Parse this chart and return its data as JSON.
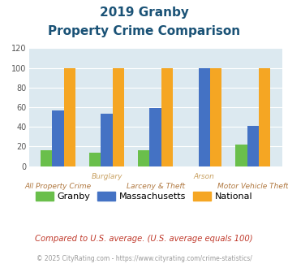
{
  "title_line1": "2019 Granby",
  "title_line2": "Property Crime Comparison",
  "categories": [
    "All Property Crime",
    "Burglary",
    "Larceny & Theft",
    "Arson",
    "Motor Vehicle Theft"
  ],
  "cat_row1": [
    "",
    "Burglary",
    "",
    "Arson",
    ""
  ],
  "cat_row2": [
    "All Property Crime",
    "",
    "Larceny & Theft",
    "",
    "Motor Vehicle Theft"
  ],
  "granby": [
    16,
    14,
    16,
    0,
    22
  ],
  "massachusetts": [
    57,
    53,
    59,
    100,
    41
  ],
  "national": [
    100,
    100,
    100,
    100,
    100
  ],
  "color_granby": "#6abf4b",
  "color_mass": "#4472c4",
  "color_national": "#f5a623",
  "ylim": [
    0,
    120
  ],
  "yticks": [
    0,
    20,
    40,
    60,
    80,
    100,
    120
  ],
  "bg_color": "#dce9f0",
  "title_color": "#1a5276",
  "xlabel_color_top": "#c8a060",
  "xlabel_color_bot": "#b07840",
  "footnote1": "Compared to U.S. average. (U.S. average equals 100)",
  "footnote2": "© 2025 CityRating.com - https://www.cityrating.com/crime-statistics/",
  "legend_labels": [
    "Granby",
    "Massachusetts",
    "National"
  ]
}
